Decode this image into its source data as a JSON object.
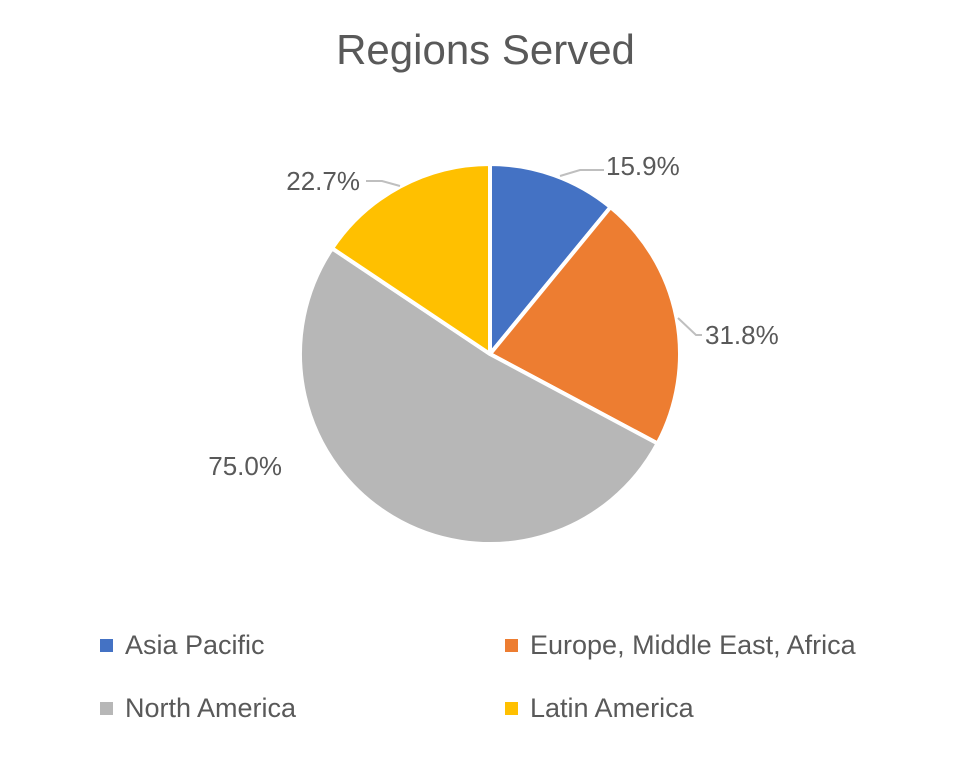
{
  "chart_data": {
    "type": "pie",
    "title": "Regions Served",
    "categories": [
      "Asia Pacific",
      "Europe, Middle East, Africa",
      "North America",
      "Latin America"
    ],
    "values": [
      15.9,
      31.8,
      75.0,
      22.7
    ],
    "value_labels": [
      "15.9%",
      "31.8%",
      "75.0%",
      "22.7%"
    ],
    "colors": [
      "#4472C4",
      "#ED7D31",
      "#B7B7B7",
      "#FFC000"
    ],
    "start_angle_deg": 0,
    "direction": "clockwise",
    "legend_position": "bottom",
    "legend_columns": 2
  }
}
